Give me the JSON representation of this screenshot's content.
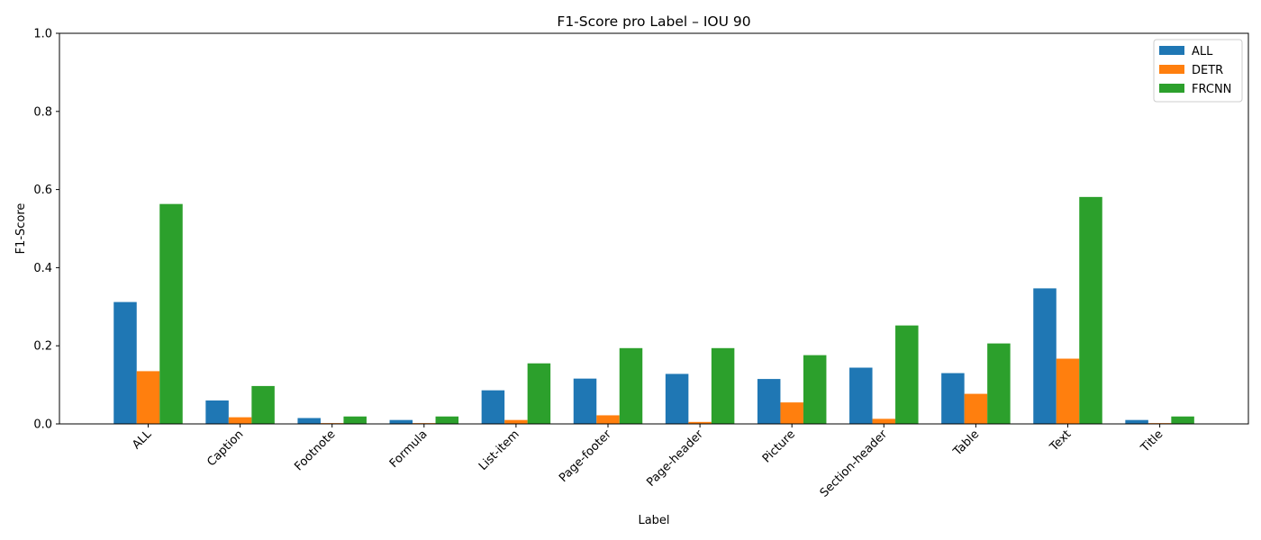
{
  "chart_data": {
    "type": "bar",
    "title": "F1-Score pro Label – IOU 90",
    "xlabel": "Label",
    "ylabel": "F1-Score",
    "ylim": [
      0,
      1.0
    ],
    "yticks": [
      "0.0",
      "0.2",
      "0.4",
      "0.6",
      "0.8",
      "1.0"
    ],
    "categories": [
      "ALL",
      "Caption",
      "Footnote",
      "Formula",
      "List-item",
      "Page-footer",
      "Page-header",
      "Picture",
      "Section-header",
      "Table",
      "Text",
      "Title"
    ],
    "series": [
      {
        "name": "ALL",
        "color": "#1f77b4",
        "values": [
          0.312,
          0.06,
          0.015,
          0.01,
          0.086,
          0.116,
          0.128,
          0.115,
          0.144,
          0.13,
          0.347,
          0.01
        ]
      },
      {
        "name": "DETR",
        "color": "#ff7f0e",
        "values": [
          0.135,
          0.017,
          0.002,
          0.002,
          0.01,
          0.022,
          0.005,
          0.055,
          0.013,
          0.077,
          0.167,
          0.002
        ]
      },
      {
        "name": "FRCNN",
        "color": "#2ca02c",
        "values": [
          0.563,
          0.097,
          0.019,
          0.019,
          0.155,
          0.194,
          0.194,
          0.176,
          0.252,
          0.206,
          0.581,
          0.019
        ]
      }
    ],
    "legend_position": "top-right",
    "grid": false
  }
}
